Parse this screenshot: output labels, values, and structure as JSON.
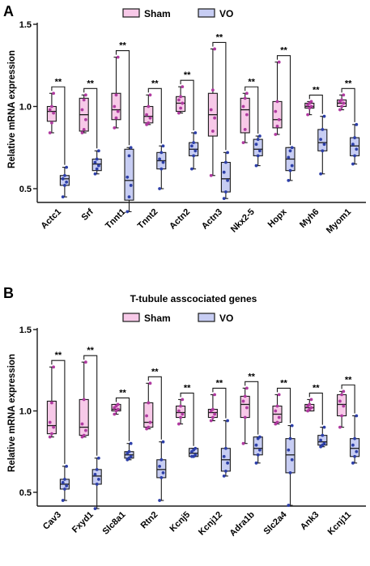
{
  "figure": {
    "colors": {
      "sham_fill": "#f7c9e8",
      "vo_fill": "#c7cdf3",
      "sham_dot": "#b03aa0",
      "vo_dot": "#2d3fa8",
      "stroke": "#1a1a1a"
    }
  },
  "chart_data": [
    {
      "panel": "A",
      "type": "box",
      "title": "",
      "ylabel": "Relative mRNA expression",
      "ylim": [
        0.3,
        1.5
      ],
      "yticks": [
        0.5,
        1.0,
        1.5
      ],
      "ytick_labels": [
        "0.5",
        "1.0",
        "1.5"
      ],
      "legend": {
        "placement": "top",
        "entries": [
          "Sham",
          "VO"
        ]
      },
      "significance": "**",
      "categories": [
        "Actc1",
        "Srf",
        "Tnnt1",
        "Tnnt2",
        "Actn2",
        "Actn3",
        "Nkx2-5",
        "Hopx",
        "Myh6",
        "Myom1"
      ],
      "series": [
        {
          "name": "Sham",
          "boxes": [
            {
              "min": 0.84,
              "q1": 0.91,
              "median": 0.97,
              "q3": 1.0,
              "max": 1.08,
              "points": [
                0.84,
                0.9,
                0.96,
                0.98,
                1.0,
                1.08
              ]
            },
            {
              "min": 0.84,
              "q1": 0.85,
              "median": 0.95,
              "q3": 1.05,
              "max": 1.07,
              "points": [
                0.84,
                0.86,
                0.92,
                0.98,
                1.04,
                1.07
              ]
            },
            {
              "min": 0.87,
              "q1": 0.92,
              "median": 0.98,
              "q3": 1.08,
              "max": 1.3,
              "points": [
                0.87,
                0.93,
                0.97,
                1.0,
                1.07,
                1.3
              ]
            },
            {
              "min": 0.89,
              "q1": 0.9,
              "median": 0.94,
              "q3": 1.0,
              "max": 1.07,
              "points": [
                0.89,
                0.9,
                0.93,
                0.95,
                1.0,
                1.07
              ]
            },
            {
              "min": 0.96,
              "q1": 0.97,
              "median": 1.02,
              "q3": 1.06,
              "max": 1.12,
              "points": [
                0.96,
                0.99,
                1.02,
                1.04,
                1.06,
                1.12
              ]
            },
            {
              "min": 0.58,
              "q1": 0.82,
              "median": 0.95,
              "q3": 1.08,
              "max": 1.35,
              "points": [
                0.58,
                0.85,
                0.93,
                0.98,
                1.1,
                1.35
              ]
            },
            {
              "min": 0.78,
              "q1": 0.84,
              "median": 0.98,
              "q3": 1.05,
              "max": 1.08,
              "points": [
                0.78,
                0.86,
                0.95,
                1.0,
                1.05,
                1.08
              ]
            },
            {
              "min": 0.83,
              "q1": 0.87,
              "median": 0.92,
              "q3": 1.03,
              "max": 1.27,
              "points": [
                0.83,
                0.88,
                0.92,
                0.97,
                1.03,
                1.27
              ]
            },
            {
              "min": 0.95,
              "q1": 0.99,
              "median": 1.0,
              "q3": 1.02,
              "max": 1.03,
              "points": [
                0.95,
                0.99,
                1.0,
                1.01,
                1.02,
                1.03
              ]
            },
            {
              "min": 0.98,
              "q1": 1.0,
              "median": 1.02,
              "q3": 1.04,
              "max": 1.07,
              "points": [
                0.98,
                1.0,
                1.02,
                1.03,
                1.04,
                1.07
              ]
            }
          ]
        },
        {
          "name": "VO",
          "boxes": [
            {
              "min": 0.45,
              "q1": 0.52,
              "median": 0.56,
              "q3": 0.58,
              "max": 0.63,
              "points": [
                0.45,
                0.52,
                0.54,
                0.56,
                0.58,
                0.63
              ]
            },
            {
              "min": 0.59,
              "q1": 0.61,
              "median": 0.65,
              "q3": 0.68,
              "max": 0.73,
              "points": [
                0.59,
                0.62,
                0.64,
                0.66,
                0.68,
                0.73
              ]
            },
            {
              "min": 0.36,
              "q1": 0.43,
              "median": 0.55,
              "q3": 0.74,
              "max": 0.75,
              "points": [
                0.36,
                0.45,
                0.52,
                0.57,
                0.7,
                0.75
              ]
            },
            {
              "min": 0.5,
              "q1": 0.62,
              "median": 0.67,
              "q3": 0.72,
              "max": 0.76,
              "points": [
                0.5,
                0.62,
                0.66,
                0.68,
                0.72,
                0.76
              ]
            },
            {
              "min": 0.62,
              "q1": 0.7,
              "median": 0.74,
              "q3": 0.78,
              "max": 0.84,
              "points": [
                0.62,
                0.7,
                0.73,
                0.76,
                0.78,
                0.84
              ]
            },
            {
              "min": 0.44,
              "q1": 0.48,
              "median": 0.56,
              "q3": 0.66,
              "max": 0.72,
              "points": [
                0.44,
                0.48,
                0.55,
                0.6,
                0.66,
                0.72
              ]
            },
            {
              "min": 0.64,
              "q1": 0.7,
              "median": 0.74,
              "q3": 0.8,
              "max": 0.82,
              "points": [
                0.64,
                0.7,
                0.73,
                0.77,
                0.8,
                0.82
              ]
            },
            {
              "min": 0.55,
              "q1": 0.61,
              "median": 0.68,
              "q3": 0.75,
              "max": 0.75,
              "points": [
                0.55,
                0.61,
                0.64,
                0.69,
                0.73,
                0.75
              ]
            },
            {
              "min": 0.59,
              "q1": 0.73,
              "median": 0.78,
              "q3": 0.86,
              "max": 0.94,
              "points": [
                0.59,
                0.73,
                0.77,
                0.8,
                0.86,
                0.94
              ]
            },
            {
              "min": 0.65,
              "q1": 0.7,
              "median": 0.76,
              "q3": 0.81,
              "max": 0.89,
              "points": [
                0.65,
                0.7,
                0.74,
                0.77,
                0.81,
                0.89
              ]
            }
          ]
        }
      ]
    },
    {
      "panel": "B",
      "type": "box",
      "title": "T-tubule asscociated genes",
      "ylabel": "Relative mRNA expression",
      "ylim": [
        0.3,
        1.5
      ],
      "yticks": [
        0.5,
        1.0,
        1.5
      ],
      "ytick_labels": [
        "0.5",
        "1.0",
        "1.5"
      ],
      "legend": {
        "placement": "top",
        "entries": [
          "Sham",
          "VO"
        ]
      },
      "significance": "**",
      "categories": [
        "Cav3",
        "Fxyd1",
        "Slc8a1",
        "Rtn2",
        "Kcnj5",
        "Kcnj12",
        "Adra1b",
        "Slc2a4",
        "Ank3",
        "Kcnj11"
      ],
      "series": [
        {
          "name": "Sham",
          "boxes": [
            {
              "min": 0.84,
              "q1": 0.86,
              "median": 0.91,
              "q3": 1.06,
              "max": 1.27,
              "points": [
                0.84,
                0.86,
                0.9,
                0.93,
                1.05,
                1.27
              ]
            },
            {
              "min": 0.84,
              "q1": 0.85,
              "median": 0.9,
              "q3": 1.07,
              "max": 1.3,
              "points": [
                0.84,
                0.85,
                0.88,
                0.92,
                1.07,
                1.3
              ]
            },
            {
              "min": 0.98,
              "q1": 1.0,
              "median": 1.01,
              "q3": 1.04,
              "max": 1.04,
              "points": [
                0.98,
                1.0,
                1.01,
                1.02,
                1.03,
                1.04
              ]
            },
            {
              "min": 0.89,
              "q1": 0.9,
              "median": 0.93,
              "q3": 1.05,
              "max": 1.17,
              "points": [
                0.89,
                0.9,
                0.93,
                0.97,
                1.05,
                1.17
              ]
            },
            {
              "min": 0.92,
              "q1": 0.96,
              "median": 0.99,
              "q3": 1.03,
              "max": 1.07,
              "points": [
                0.92,
                0.96,
                0.98,
                1.0,
                1.03,
                1.07
              ]
            },
            {
              "min": 0.94,
              "q1": 0.96,
              "median": 0.99,
              "q3": 1.01,
              "max": 1.1,
              "points": [
                0.94,
                0.96,
                0.98,
                1.0,
                1.01,
                1.1
              ]
            },
            {
              "min": 0.8,
              "q1": 0.96,
              "median": 1.04,
              "q3": 1.09,
              "max": 1.14,
              "points": [
                0.8,
                0.96,
                1.02,
                1.06,
                1.09,
                1.14
              ]
            },
            {
              "min": 0.92,
              "q1": 0.93,
              "median": 0.98,
              "q3": 1.03,
              "max": 1.1,
              "points": [
                0.92,
                0.93,
                0.96,
                1.0,
                1.03,
                1.1
              ]
            },
            {
              "min": 1.0,
              "q1": 1.0,
              "median": 1.02,
              "q3": 1.04,
              "max": 1.07,
              "points": [
                1.0,
                1.01,
                1.02,
                1.03,
                1.04,
                1.07
              ]
            },
            {
              "min": 0.9,
              "q1": 0.97,
              "median": 1.04,
              "q3": 1.1,
              "max": 1.12,
              "points": [
                0.9,
                0.97,
                1.03,
                1.06,
                1.1,
                1.12
              ]
            }
          ]
        },
        {
          "name": "VO",
          "boxes": [
            {
              "min": 0.45,
              "q1": 0.52,
              "median": 0.55,
              "q3": 0.58,
              "max": 0.66,
              "points": [
                0.45,
                0.52,
                0.54,
                0.56,
                0.58,
                0.66
              ]
            },
            {
              "min": 0.4,
              "q1": 0.55,
              "median": 0.6,
              "q3": 0.64,
              "max": 0.71,
              "points": [
                0.4,
                0.55,
                0.58,
                0.61,
                0.64,
                0.71
              ]
            },
            {
              "min": 0.7,
              "q1": 0.71,
              "median": 0.73,
              "q3": 0.75,
              "max": 0.8,
              "points": [
                0.7,
                0.71,
                0.72,
                0.74,
                0.75,
                0.8
              ]
            },
            {
              "min": 0.45,
              "q1": 0.59,
              "median": 0.64,
              "q3": 0.7,
              "max": 0.81,
              "points": [
                0.45,
                0.59,
                0.62,
                0.66,
                0.7,
                0.81
              ]
            },
            {
              "min": 0.72,
              "q1": 0.72,
              "median": 0.74,
              "q3": 0.77,
              "max": 0.77,
              "points": [
                0.72,
                0.72,
                0.73,
                0.75,
                0.76,
                0.77
              ]
            },
            {
              "min": 0.6,
              "q1": 0.63,
              "median": 0.7,
              "q3": 0.77,
              "max": 0.94,
              "points": [
                0.6,
                0.63,
                0.68,
                0.72,
                0.77,
                0.94
              ]
            },
            {
              "min": 0.68,
              "q1": 0.73,
              "median": 0.77,
              "q3": 0.84,
              "max": 0.84,
              "points": [
                0.68,
                0.73,
                0.76,
                0.79,
                0.83,
                0.84
              ]
            },
            {
              "min": 0.42,
              "q1": 0.62,
              "median": 0.73,
              "q3": 0.83,
              "max": 0.91,
              "points": [
                0.42,
                0.62,
                0.7,
                0.76,
                0.83,
                0.91
              ]
            },
            {
              "min": 0.78,
              "q1": 0.79,
              "median": 0.81,
              "q3": 0.85,
              "max": 0.9,
              "points": [
                0.78,
                0.79,
                0.8,
                0.82,
                0.85,
                0.9
              ]
            },
            {
              "min": 0.68,
              "q1": 0.72,
              "median": 0.77,
              "q3": 0.83,
              "max": 0.97,
              "points": [
                0.68,
                0.72,
                0.75,
                0.79,
                0.83,
                0.97
              ]
            }
          ]
        }
      ]
    }
  ]
}
